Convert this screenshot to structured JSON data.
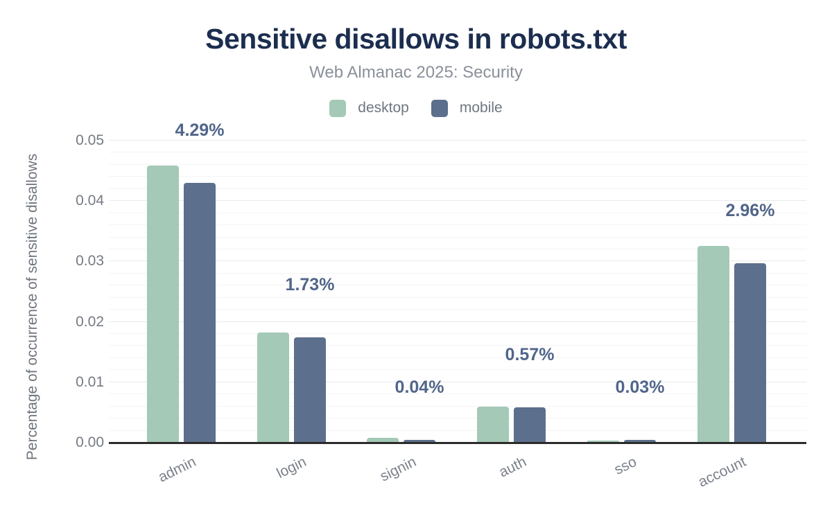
{
  "header": {
    "title": "Sensitive disallows in robots.txt",
    "subtitle": "Web Almanac 2025: Security"
  },
  "legend": {
    "items": [
      {
        "label": "desktop",
        "color": "#a4c9b6"
      },
      {
        "label": "mobile",
        "color": "#5c6f8c"
      }
    ]
  },
  "chart_data": {
    "type": "bar",
    "title": "Sensitive disallows in robots.txt",
    "subtitle": "Web Almanac 2025: Security",
    "categories": [
      "admin",
      "login",
      "signin",
      "auth",
      "sso",
      "account"
    ],
    "series": [
      {
        "name": "desktop",
        "color": "#a4c9b6",
        "values": [
          0.0457,
          0.0181,
          0.0007,
          0.0059,
          0.0002,
          0.0324
        ]
      },
      {
        "name": "mobile",
        "color": "#5c6f8c",
        "values": [
          0.0429,
          0.0173,
          0.0004,
          0.0057,
          0.0003,
          0.0296
        ]
      }
    ],
    "data_labels": {
      "series": "mobile",
      "values": [
        "4.29%",
        "1.73%",
        "0.04%",
        "0.57%",
        "0.03%",
        "2.96%"
      ]
    },
    "xlabel": "",
    "ylabel": "Percentage of occurrence of sensitive disallows",
    "ylim": [
      0,
      0.05
    ],
    "yticks": [
      "0.00",
      "0.01",
      "0.02",
      "0.03",
      "0.04",
      "0.05"
    ],
    "minor_grid_step": 0.002,
    "grid": true,
    "legend_position": "top"
  },
  "colors": {
    "title": "#1c2e4f",
    "subtitle": "#8a9099",
    "value_label": "#51658a",
    "axis_text": "#757b84",
    "baseline": "#2b2b2b",
    "grid_major": "#e8e9eb",
    "grid_minor": "#f4f4f6",
    "background": "#ffffff"
  }
}
